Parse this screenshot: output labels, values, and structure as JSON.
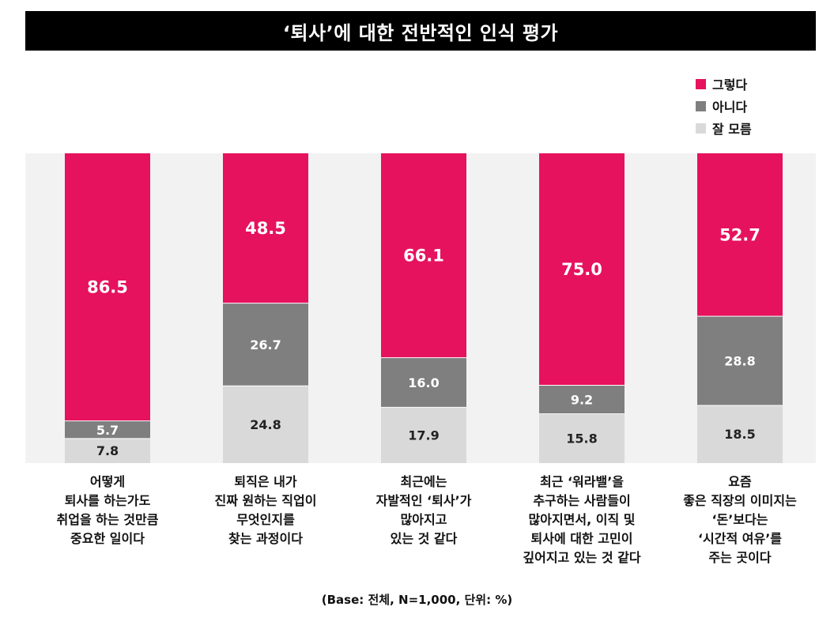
{
  "title": "‘퇴사’에 대한 전반적인 인식 평가",
  "legend": [
    {
      "label": "그렇다",
      "color": "#e6125d"
    },
    {
      "label": "아니다",
      "color": "#7f7f7f"
    },
    {
      "label": "잘 모름",
      "color": "#d9d9d9"
    }
  ],
  "base_note": "(Base: 전체, N=1,000, 단위: %)",
  "chart_data": {
    "type": "bar",
    "stacked": true,
    "categories": [
      "어떻게\n퇴사를 하는가도\n취업을 하는 것만큼\n중요한 일이다",
      "퇴직은 내가\n진짜 원하는 직업이\n무엇인지를\n찾는 과정이다",
      "최근에는\n자발적인 ‘퇴사’가\n많아지고\n있는 것 같다",
      "최근 ‘워라밸’을\n추구하는 사람들이\n많아지면서, 이직 및\n퇴사에 대한 고민이\n깊어지고 있는 것 같다",
      "요즘\n좋은 직장의 이미지는\n‘돈’보다는\n‘시간적 여유’를\n주는 곳이다"
    ],
    "series": [
      {
        "name": "그렇다",
        "values": [
          86.5,
          48.5,
          66.1,
          75.0,
          52.7
        ],
        "labels": [
          "86.5",
          "48.5",
          "66.1",
          "75.0",
          "52.7"
        ],
        "color": "#e6125d",
        "label_color": "#ffffff"
      },
      {
        "name": "아니다",
        "values": [
          5.7,
          26.7,
          16.0,
          9.2,
          28.8
        ],
        "labels": [
          "5.7",
          "26.7",
          "16.0",
          "9.2",
          "28.8"
        ],
        "color": "#7f7f7f",
        "label_color": "#ffffff"
      },
      {
        "name": "잘 모름",
        "values": [
          7.8,
          24.8,
          17.9,
          15.8,
          18.5
        ],
        "labels": [
          "7.8",
          "24.8",
          "17.9",
          "15.8",
          "18.5"
        ],
        "color": "#d9d9d9",
        "label_color": "#222222"
      }
    ],
    "ylim": [
      0,
      100
    ],
    "legend_position": "top-right"
  }
}
